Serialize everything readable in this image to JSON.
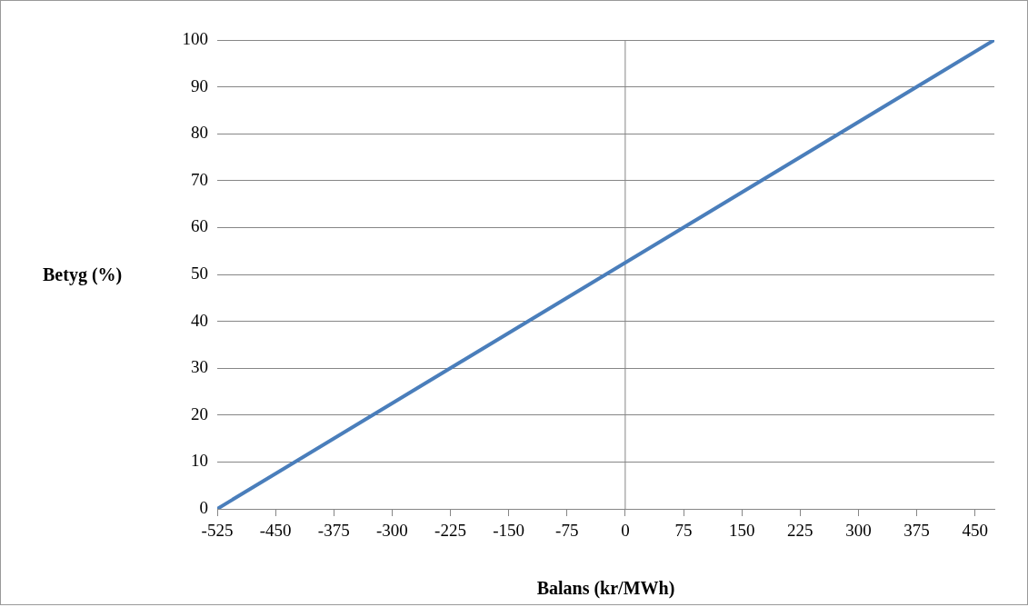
{
  "chart_data": {
    "type": "line",
    "xlabel": "Balans (kr/MWh)",
    "ylabel": "Betyg (%)",
    "series": [
      {
        "color": "#4a7ebb",
        "x": [
          -525,
          475
        ],
        "values": [
          0,
          100
        ]
      }
    ],
    "xlim": [
      -525,
      475
    ],
    "xticks": [
      -525,
      -450,
      -375,
      -300,
      -225,
      -150,
      -75,
      0,
      75,
      150,
      225,
      300,
      375,
      450
    ],
    "ylim": [
      0,
      100
    ],
    "yticks": [
      0,
      10,
      20,
      30,
      40,
      50,
      60,
      70,
      80,
      90,
      100
    ],
    "ref_lines": [
      {
        "axis": "x",
        "value": 0,
        "color": "#868686"
      }
    ],
    "grid": "y",
    "legend": false,
    "marker": "none",
    "line_style": "solid"
  }
}
